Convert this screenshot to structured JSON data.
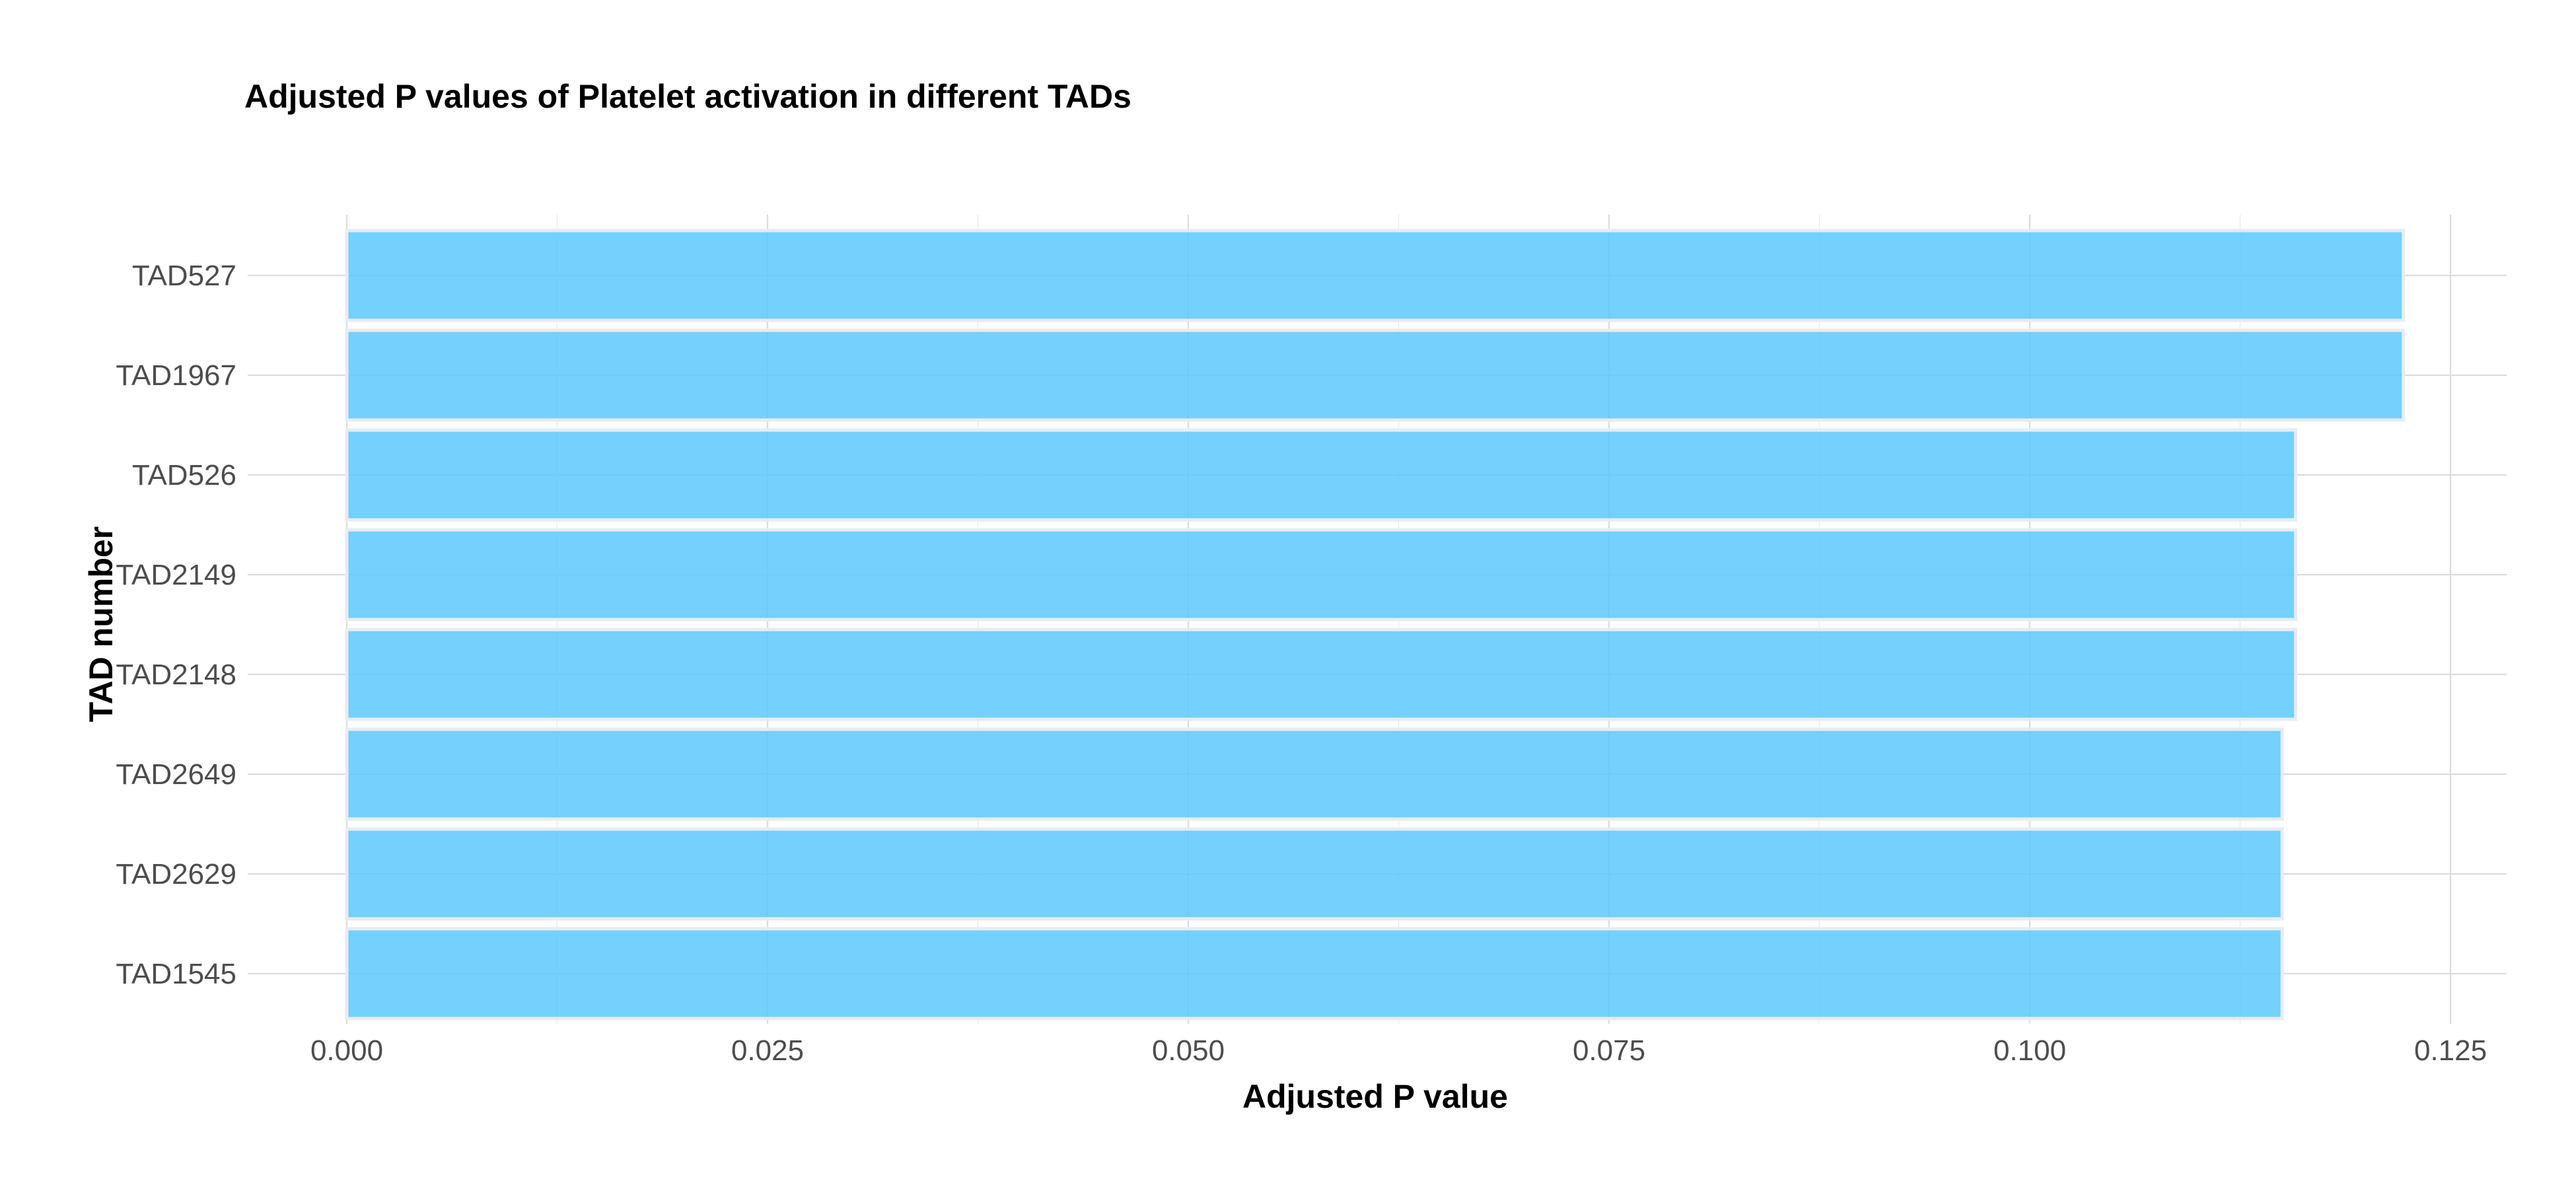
{
  "chart_data": {
    "type": "bar",
    "orientation": "horizontal",
    "title": "Adjusted P values of Platelet activation in different TADs",
    "xlabel": "Adjusted P value",
    "ylabel": "TAD number",
    "categories": [
      "TAD527",
      "TAD1967",
      "TAD526",
      "TAD2149",
      "TAD2148",
      "TAD2649",
      "TAD2629",
      "TAD1545"
    ],
    "values": [
      0.1222,
      0.1222,
      0.1158,
      0.1158,
      0.1158,
      0.115,
      0.115,
      0.115
    ],
    "xlim": [
      0,
      0.128
    ],
    "xticks": [
      0,
      0.025,
      0.05,
      0.075,
      0.1,
      0.125
    ],
    "xtick_labels": [
      "0.000",
      "0.025",
      "0.050",
      "0.075",
      "0.100",
      "0.125"
    ],
    "grid": true,
    "legend": "none",
    "bar_color": "#5cc8fb",
    "bar_outline_color": "#e8ecf2"
  }
}
